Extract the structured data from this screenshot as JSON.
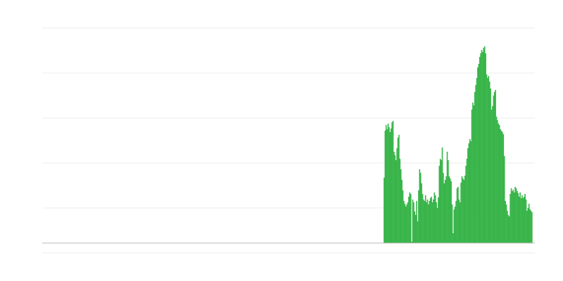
{
  "chart_data": {
    "type": "bar",
    "color": "#39b54a",
    "grid": true,
    "xlim": [
      0,
      500
    ],
    "ylim": [
      -14,
      306
    ],
    "yticks": [
      -14,
      50,
      114,
      178,
      242,
      306
    ],
    "x": [
      347,
      348,
      349,
      350,
      351,
      352,
      353,
      354,
      355,
      356,
      357,
      358,
      359,
      360,
      361,
      362,
      363,
      364,
      365,
      366,
      367,
      368,
      369,
      370,
      371,
      372,
      373,
      374,
      375,
      376,
      377,
      378,
      379,
      380,
      381,
      382,
      383,
      384,
      385,
      386,
      387,
      388,
      389,
      390,
      391,
      392,
      393,
      394,
      395,
      396,
      397,
      398,
      399,
      400,
      401,
      402,
      403,
      404,
      405,
      406,
      407,
      408,
      409,
      410,
      411,
      412,
      413,
      414,
      415,
      416,
      417,
      418,
      419,
      420,
      421,
      422,
      423,
      424,
      425,
      426,
      427,
      428,
      429,
      430,
      431,
      432,
      433,
      434,
      435,
      436,
      437,
      438,
      439,
      440,
      441,
      442,
      443,
      444,
      445,
      446,
      447,
      448,
      449,
      450,
      451,
      452,
      453,
      454,
      455,
      456,
      457,
      458,
      459,
      460,
      461,
      462,
      463,
      464,
      465,
      466,
      467,
      468,
      469,
      470,
      471,
      472,
      473,
      474,
      475,
      476,
      477,
      478,
      479,
      480,
      481,
      482,
      483,
      484,
      485,
      486,
      487,
      488,
      489,
      490,
      491,
      492,
      493,
      494,
      495,
      496,
      497
    ],
    "values": [
      93,
      160,
      168,
      162,
      170,
      165,
      158,
      163,
      172,
      174,
      130,
      125,
      118,
      135,
      150,
      154,
      120,
      105,
      90,
      75,
      60,
      56,
      52,
      55,
      58,
      66,
      72,
      70,
      2,
      62,
      58,
      45,
      40,
      60,
      31,
      75,
      105,
      100,
      85,
      70,
      62,
      60,
      68,
      58,
      62,
      55,
      60,
      64,
      66,
      58,
      62,
      72,
      68,
      58,
      50,
      65,
      110,
      120,
      118,
      136,
      100,
      85,
      90,
      95,
      130,
      118,
      95,
      92,
      88,
      55,
      14,
      48,
      52,
      60,
      78,
      80,
      62,
      58,
      86,
      95,
      92,
      90,
      96,
      110,
      120,
      135,
      142,
      148,
      145,
      190,
      200,
      196,
      215,
      225,
      235,
      250,
      255,
      265,
      270,
      275,
      272,
      278,
      280,
      270,
      240,
      235,
      238,
      230,
      220,
      190,
      195,
      210,
      215,
      218,
      180,
      175,
      170,
      168,
      162,
      160,
      158,
      155,
      124,
      60,
      55,
      46,
      40,
      38,
      70,
      78,
      74,
      76,
      72,
      80,
      78,
      74,
      71,
      66,
      72,
      64,
      68,
      64,
      66,
      70,
      62,
      46,
      50,
      56,
      48,
      46,
      44
    ]
  }
}
